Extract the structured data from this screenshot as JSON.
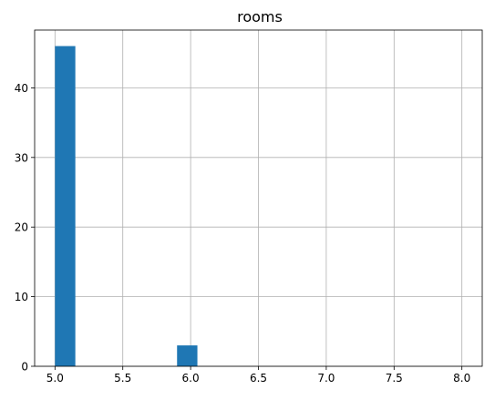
{
  "colors": {
    "bar": "#1f77b4",
    "grid": "#b0b0b0",
    "axis": "#000000",
    "background": "#ffffff"
  },
  "chart_data": {
    "type": "bar",
    "title": "rooms",
    "xlabel": "",
    "ylabel": "",
    "grid": true,
    "xlim": [
      4.85,
      8.15
    ],
    "ylim": [
      0,
      48.3
    ],
    "x_ticks": [
      5.0,
      5.5,
      6.0,
      6.5,
      7.0,
      7.5,
      8.0
    ],
    "x_tick_labels": [
      "5.0",
      "5.5",
      "6.0",
      "6.5",
      "7.0",
      "7.5",
      "8.0"
    ],
    "y_ticks": [
      0,
      10,
      20,
      30,
      40
    ],
    "y_tick_labels": [
      "0",
      "10",
      "20",
      "30",
      "40"
    ],
    "bins": [
      {
        "start": 5.0,
        "end": 5.15,
        "count": 46
      },
      {
        "start": 5.9,
        "end": 6.05,
        "count": 3
      }
    ]
  }
}
